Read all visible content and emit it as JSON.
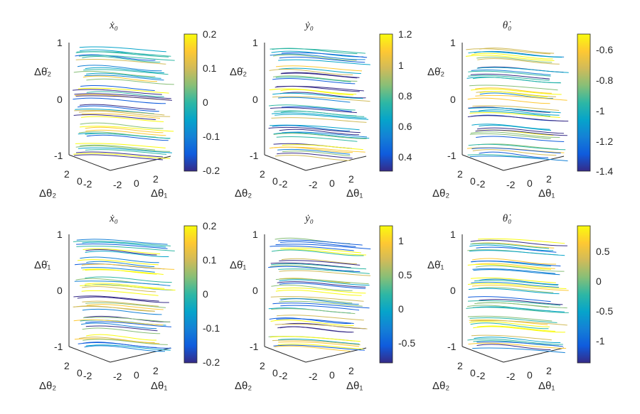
{
  "chart_data": [
    {
      "type": "contour-slices-3d",
      "title": "ẋ₀",
      "zlabel": "Δθ̇₂",
      "xlabel": "Δθ₁",
      "ylabel": "Δθ₂",
      "zlim": [
        -1,
        1
      ],
      "zticks": [
        "1",
        "0",
        "-1"
      ],
      "xticks": [
        "-2",
        "0",
        "2"
      ],
      "yticks": [
        "2",
        "0",
        "-2"
      ],
      "colorbar": {
        "range": [
          -0.2,
          0.2
        ],
        "ticks": [
          0.2,
          0.1,
          0,
          -0.1,
          -0.2
        ],
        "tick_labels": [
          "0.2",
          "0.1",
          "0",
          "-0.1",
          "-0.2"
        ]
      },
      "slices": 6
    },
    {
      "type": "contour-slices-3d",
      "title": "ẏ₀",
      "zlabel": "Δθ̇₂",
      "xlabel": "Δθ₁",
      "ylabel": "Δθ₂",
      "zlim": [
        -1,
        1
      ],
      "zticks": [
        "1",
        "0",
        "-1"
      ],
      "xticks": [
        "-2",
        "0",
        "2"
      ],
      "yticks": [
        "2",
        "0",
        "-2"
      ],
      "colorbar": {
        "range": [
          0.3,
          1.2
        ],
        "ticks": [
          1.2,
          1,
          0.8,
          0.6,
          0.4
        ],
        "tick_labels": [
          "1.2",
          "1",
          "0.8",
          "0.6",
          "0.4"
        ]
      },
      "slices": 6
    },
    {
      "type": "contour-slices-3d",
      "title": "θ̇₀",
      "zlabel": "Δθ̇₂",
      "xlabel": "Δθ₁",
      "ylabel": "Δθ₂",
      "zlim": [
        -1,
        1
      ],
      "zticks": [
        "1",
        "0",
        "-1"
      ],
      "xticks": [
        "-2",
        "0",
        "2"
      ],
      "yticks": [
        "2",
        "0",
        "-2"
      ],
      "colorbar": {
        "range": [
          -1.4,
          -0.5
        ],
        "ticks": [
          -0.6,
          -0.8,
          -1,
          -1.2,
          -1.4
        ],
        "tick_labels": [
          "-0.6",
          "-0.8",
          "-1",
          "-1.2",
          "-1.4"
        ]
      },
      "slices": 6
    },
    {
      "type": "contour-slices-3d",
      "title": "ẋ₀",
      "zlabel": "Δθ̇₁",
      "xlabel": "Δθ₁",
      "ylabel": "Δθ₂",
      "zlim": [
        -1,
        1
      ],
      "zticks": [
        "1",
        "0",
        "-1"
      ],
      "xticks": [
        "-2",
        "0",
        "2"
      ],
      "yticks": [
        "2",
        "0",
        "-2"
      ],
      "colorbar": {
        "range": [
          -0.2,
          0.2
        ],
        "ticks": [
          0.2,
          0.1,
          0,
          -0.1,
          -0.2
        ],
        "tick_labels": [
          "0.2",
          "0.1",
          "0",
          "-0.1",
          "-0.2"
        ]
      },
      "slices": 6
    },
    {
      "type": "contour-slices-3d",
      "title": "ẏ₀",
      "zlabel": "Δθ̇₁",
      "xlabel": "Δθ₁",
      "ylabel": "Δθ₂",
      "zlim": [
        -1,
        1
      ],
      "zticks": [
        "1",
        "0",
        "-1"
      ],
      "xticks": [
        "-2",
        "0",
        "2"
      ],
      "yticks": [
        "2",
        "0",
        "-2"
      ],
      "colorbar": {
        "range": [
          -0.8,
          1.2
        ],
        "ticks": [
          1,
          0.5,
          0,
          -0.5
        ],
        "tick_labels": [
          "1",
          "0.5",
          "0",
          "-0.5"
        ]
      },
      "slices": 6
    },
    {
      "type": "contour-slices-3d",
      "title": "θ̇₀",
      "zlabel": "Δθ̇₁",
      "xlabel": "Δθ₁",
      "ylabel": "Δθ₂",
      "zlim": [
        -1,
        1
      ],
      "zticks": [
        "1",
        "0",
        "-1"
      ],
      "xticks": [
        "-2",
        "0",
        "2"
      ],
      "yticks": [
        "2",
        "0",
        "-2"
      ],
      "colorbar": {
        "range": [
          -1.4,
          0.9
        ],
        "ticks": [
          0.5,
          0,
          -0.5,
          -1
        ],
        "tick_labels": [
          "0.5",
          "0",
          "-0.5",
          "-1"
        ]
      },
      "slices": 6
    }
  ],
  "colormap": [
    "#352a87",
    "#0f5cdd",
    "#1481d6",
    "#06a4ca",
    "#2eb7a4",
    "#87bf77",
    "#d1bb59",
    "#fec832",
    "#f9fb0e"
  ]
}
